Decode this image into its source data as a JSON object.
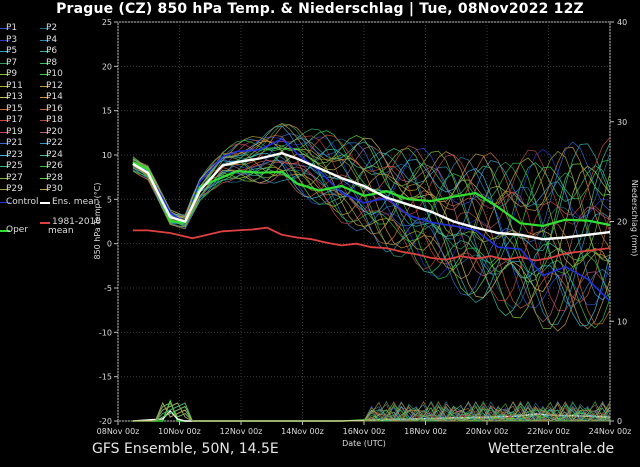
{
  "header": {
    "title": "Prague  (CZ)  850 hPa Temp. & Niederschlag | Tue, 08Nov2022 12Z"
  },
  "footer": {
    "left": "GFS Ensemble, 50N, 14.5E",
    "right": "Wetterzentrale.de"
  },
  "legend": {
    "members": [
      {
        "label": "P1",
        "color": "#2f4fd8"
      },
      {
        "label": "P2",
        "color": "#1f6f8f"
      },
      {
        "label": "P3",
        "color": "#2a34c8"
      },
      {
        "label": "P4",
        "color": "#2f7fb8"
      },
      {
        "label": "P5",
        "color": "#2fa0c0"
      },
      {
        "label": "P6",
        "color": "#33b3a8"
      },
      {
        "label": "P7",
        "color": "#3a9a60"
      },
      {
        "label": "P8",
        "color": "#3cc060"
      },
      {
        "label": "P9",
        "color": "#7ac030"
      },
      {
        "label": "P10",
        "color": "#2ed04a"
      },
      {
        "label": "P11",
        "color": "#b0b040"
      },
      {
        "label": "P12",
        "color": "#c09a40"
      },
      {
        "label": "P13",
        "color": "#c8c060"
      },
      {
        "label": "P14",
        "color": "#d09040"
      },
      {
        "label": "P15",
        "color": "#c07030"
      },
      {
        "label": "P16",
        "color": "#c06040"
      },
      {
        "label": "P17",
        "color": "#d04a3a"
      },
      {
        "label": "P18",
        "color": "#b04a40"
      },
      {
        "label": "P19",
        "color": "#c84060"
      },
      {
        "label": "P20",
        "color": "#b06080"
      },
      {
        "label": "P21",
        "color": "#3a6ad0"
      },
      {
        "label": "P22",
        "color": "#3a9ad0"
      },
      {
        "label": "P23",
        "color": "#40b8e0"
      },
      {
        "label": "P24",
        "color": "#40c0a0"
      },
      {
        "label": "P25",
        "color": "#3ab878"
      },
      {
        "label": "P26",
        "color": "#30c040"
      },
      {
        "label": "P27",
        "color": "#7ab840"
      },
      {
        "label": "P28",
        "color": "#60d040"
      },
      {
        "label": "P29",
        "color": "#a0a040"
      },
      {
        "label": "P30",
        "color": "#c0a050"
      }
    ],
    "control": {
      "label": "Control",
      "color": "#2030e0"
    },
    "ens_mean": {
      "label": "Ens. mean",
      "color": "#ffffff"
    },
    "climate": {
      "label_line1": "1981-2010",
      "label_line2": "mean",
      "color": "#e04040"
    },
    "oper": {
      "label": "Oper",
      "color": "#30e030"
    }
  },
  "chart_data": {
    "type": "line",
    "xlabel": "Date (UTC)",
    "ylabel": "850 hPa Temp. (°C)",
    "y2label": "Niederschlag (mm)",
    "x_tick_labels": [
      "08Nov 00z",
      "10Nov 00z",
      "12Nov 00z",
      "14Nov 00z",
      "16Nov 00z",
      "18Nov 00z",
      "20Nov 00z",
      "22Nov 00z",
      "24Nov 00z"
    ],
    "x_unit": "hours since 08Nov 00z",
    "x_range": [
      0,
      396
    ],
    "ylim": [
      -20,
      25
    ],
    "y_ticks": [
      -20,
      -15,
      -10,
      -5,
      0,
      5,
      10,
      15,
      20,
      25
    ],
    "y2lim": [
      0,
      40
    ],
    "y2_ticks": [
      0,
      10,
      20,
      30,
      40
    ],
    "grid": true,
    "legend_position": "left",
    "series": [
      {
        "name": "Ens. mean",
        "color": "#ffffff",
        "x": [
          12,
          24,
          42,
          54,
          66,
          84,
          96,
          114,
          132,
          144,
          162,
          180,
          198,
          216,
          234,
          252,
          270,
          288,
          306,
          324,
          342,
          360,
          378,
          396
        ],
        "y": [
          9,
          8,
          3,
          2.5,
          6,
          8.8,
          9.2,
          9.6,
          10.2,
          9.6,
          8.5,
          7.4,
          6.5,
          5.2,
          4.4,
          3.6,
          2.5,
          1.8,
          1.2,
          1.0,
          0.5,
          0.7,
          1.0,
          1.3
        ]
      },
      {
        "name": "Oper",
        "color": "#30e030",
        "x": [
          12,
          24,
          42,
          54,
          66,
          84,
          96,
          114,
          132,
          144,
          162,
          180,
          198,
          216,
          234,
          252,
          270,
          288,
          306,
          324,
          342,
          360,
          378,
          396
        ],
        "y": [
          9.2,
          8.4,
          2.5,
          2.4,
          6.4,
          7.5,
          8.2,
          8.0,
          8.1,
          6.8,
          6.0,
          6.5,
          5.4,
          5.9,
          5.0,
          4.8,
          5.3,
          5.7,
          4.1,
          2.3,
          2.0,
          2.7,
          2.6,
          2.1
        ]
      },
      {
        "name": "Control",
        "color": "#2030e0",
        "x": [
          12,
          24,
          42,
          54,
          66,
          84,
          96,
          114,
          132,
          144,
          162,
          180,
          198,
          216,
          234,
          252,
          270,
          288,
          306,
          324,
          342,
          360,
          378,
          396
        ],
        "y": [
          9.0,
          8.2,
          3.5,
          2.3,
          7.0,
          9.8,
          10.4,
          10.6,
          11.8,
          10.2,
          8.2,
          5.7,
          4.6,
          5.2,
          3.2,
          2.4,
          2.0,
          1.5,
          -0.4,
          -0.6,
          -3.6,
          -2.6,
          -4.0,
          -6.5
        ]
      },
      {
        "name": "1981-2010 mean",
        "color": "#e04040",
        "x": [
          12,
          24,
          42,
          60,
          72,
          84,
          96,
          108,
          120,
          132,
          144,
          156,
          168,
          180,
          192,
          204,
          216,
          228,
          240,
          252,
          264,
          276,
          288,
          300,
          312,
          324,
          336,
          348,
          360,
          372,
          384,
          396
        ],
        "y": [
          1.5,
          1.5,
          1.2,
          0.6,
          1.0,
          1.4,
          1.5,
          1.6,
          1.8,
          1.0,
          0.7,
          0.5,
          0.1,
          -0.2,
          0.0,
          -0.4,
          -0.5,
          -0.9,
          -1.2,
          -1.6,
          -1.8,
          -1.4,
          -1.7,
          -1.4,
          -1.8,
          -1.5,
          -1.9,
          -1.6,
          -1.1,
          -0.9,
          -0.7,
          -0.5
        ]
      }
    ],
    "precip_series": [
      {
        "name": "Oper precip",
        "color": "#30e030",
        "x": [
          12,
          36,
          42,
          48,
          54,
          84,
          132,
          180,
          216,
          264,
          300,
          324,
          336,
          342,
          348,
          354,
          372,
          384,
          396
        ],
        "y": [
          0,
          0,
          2.0,
          0,
          0,
          0,
          0,
          0,
          0.2,
          0.2,
          0.3,
          0.2,
          0.6,
          0.3,
          1.2,
          0.2,
          0.8,
          0.4,
          0.3
        ]
      },
      {
        "name": "Ens. mean precip",
        "color": "#ffffff",
        "x": [
          12,
          36,
          42,
          48,
          54,
          84,
          132,
          180,
          216,
          264,
          300,
          324,
          336,
          348,
          372,
          396
        ],
        "y": [
          0,
          0.2,
          1.0,
          0.2,
          0,
          0,
          0,
          0,
          0.1,
          0.3,
          0.4,
          0.5,
          0.7,
          0.6,
          0.5,
          0.4
        ]
      }
    ]
  }
}
